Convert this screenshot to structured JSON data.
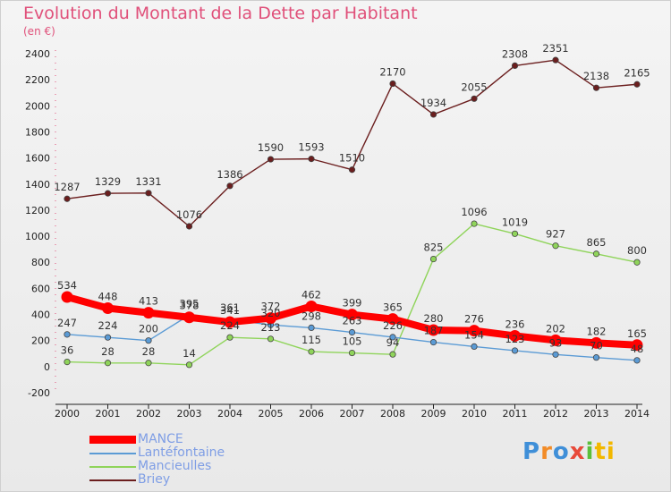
{
  "chart_data": {
    "type": "line",
    "title": "Evolution du Montant de la Dette par Habitant",
    "unit_label": "(en €)",
    "x": [
      "2000",
      "2001",
      "2002",
      "2003",
      "2004",
      "2005",
      "2006",
      "2007",
      "2008",
      "2009",
      "2010",
      "2011",
      "2012",
      "2013",
      "2014"
    ],
    "ylim": [
      -200,
      2400
    ],
    "yticks": [
      -200,
      0,
      200,
      400,
      600,
      800,
      1000,
      1200,
      1400,
      1600,
      1800,
      2000,
      2200,
      2400
    ],
    "grid": false,
    "legend_position": "bottom-left",
    "series": [
      {
        "name": "MANCE",
        "color": "#ff0000",
        "values": [
          534,
          448,
          413,
          378,
          341,
          372,
          462,
          399,
          365,
          280,
          276,
          236,
          202,
          182,
          165
        ]
      },
      {
        "name": "Lantéfontaine",
        "color": "#5b9bd5",
        "values": [
          247,
          224,
          200,
          395,
          361,
          320,
          298,
          263,
          226,
          187,
          154,
          123,
          93,
          70,
          48
        ]
      },
      {
        "name": "Mancieulles",
        "color": "#8fd45a",
        "values": [
          36,
          28,
          28,
          14,
          224,
          213,
          115,
          105,
          94,
          825,
          1096,
          1019,
          927,
          865,
          800
        ]
      },
      {
        "name": "Briey",
        "color": "#6b1e1e",
        "values": [
          1287,
          1329,
          1331,
          1076,
          1386,
          1590,
          1593,
          1510,
          2170,
          1934,
          2055,
          2308,
          2351,
          2138,
          2165
        ]
      }
    ]
  },
  "logo": [
    "P",
    "r",
    "o",
    "x",
    "i",
    "ti"
  ]
}
